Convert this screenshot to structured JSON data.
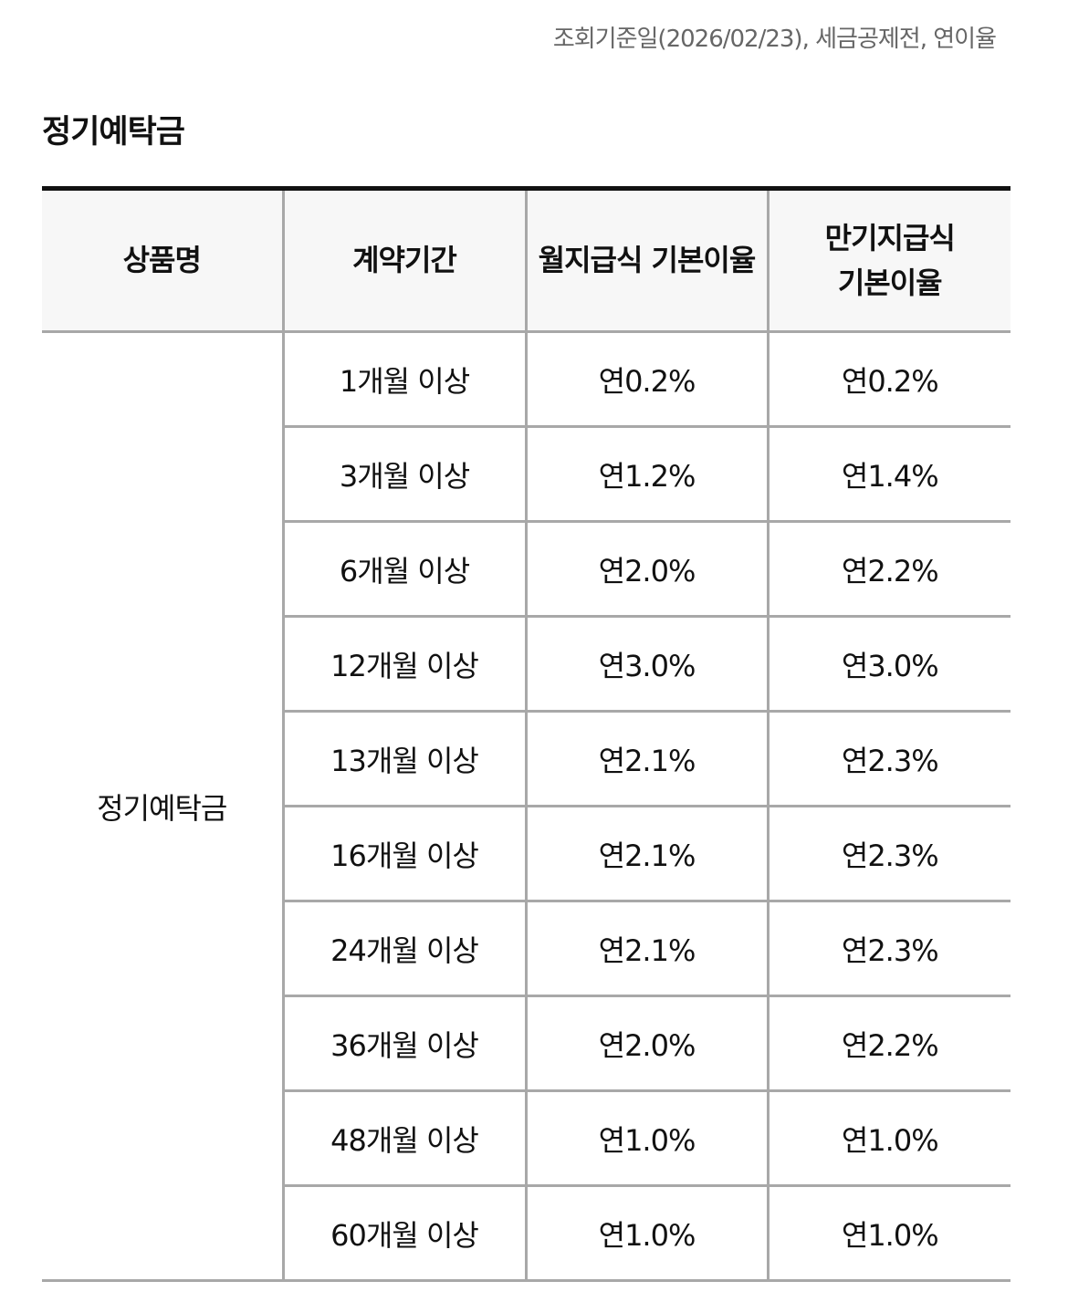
{
  "reference_note": "조회기준일(2026/02/23), 세금공제전, 연이율",
  "section_title": "정기예탁금",
  "table": {
    "headers": {
      "product": "상품명",
      "term": "계약기간",
      "monthly_rate": "월지급식 기본이율",
      "maturity_rate": "만기지급식 기본이율"
    },
    "product_name": "정기예탁금",
    "rows": [
      {
        "term": "1개월 이상",
        "monthly": "연0.2%",
        "maturity": "연0.2%"
      },
      {
        "term": "3개월 이상",
        "monthly": "연1.2%",
        "maturity": "연1.4%"
      },
      {
        "term": "6개월 이상",
        "monthly": "연2.0%",
        "maturity": "연2.2%"
      },
      {
        "term": "12개월 이상",
        "monthly": "연3.0%",
        "maturity": "연3.0%"
      },
      {
        "term": "13개월 이상",
        "monthly": "연2.1%",
        "maturity": "연2.3%"
      },
      {
        "term": "16개월 이상",
        "monthly": "연2.1%",
        "maturity": "연2.3%"
      },
      {
        "term": "24개월 이상",
        "monthly": "연2.1%",
        "maturity": "연2.3%"
      },
      {
        "term": "36개월 이상",
        "monthly": "연2.0%",
        "maturity": "연2.2%"
      },
      {
        "term": "48개월 이상",
        "monthly": "연1.0%",
        "maturity": "연1.0%"
      },
      {
        "term": "60개월 이상",
        "monthly": "연1.0%",
        "maturity": "연1.0%"
      }
    ]
  }
}
